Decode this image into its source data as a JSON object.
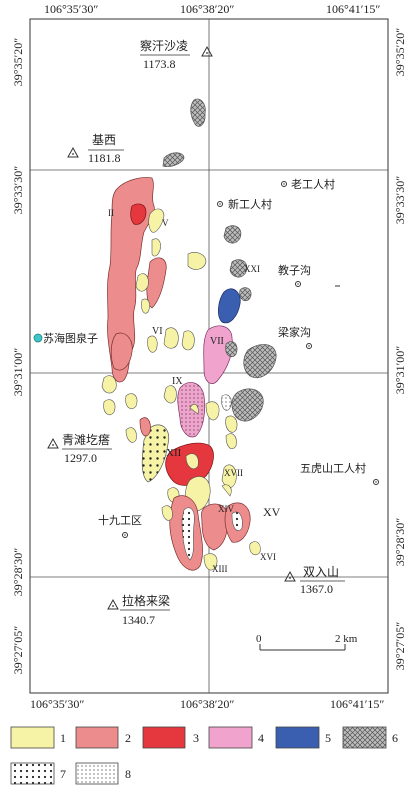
{
  "map": {
    "coords": {
      "top_left": "106°35′30″",
      "top_mid": "106°38′20″",
      "top_right": "106°41′15″",
      "bottom_left": "106°35′30″",
      "bottom_mid": "106°38′20″",
      "bottom_right": "106°41′15″",
      "left_top": "39°35′20″",
      "left_upper": "39°33′30″",
      "left_mid": "39°31′00″",
      "left_lower": "39°28′30″",
      "left_bottom": "39°27′05″",
      "right_top": "39°35′20″",
      "right_upper": "39°33′30″",
      "right_mid": "39°31′00″",
      "right_lower": "39°28′30″",
      "right_bottom": "39°27′05″"
    },
    "peaks": [
      {
        "name": "察汗沙凌",
        "elevation": "1173.8"
      },
      {
        "name": "基西",
        "elevation": "1181.8"
      },
      {
        "name": "青滩圪瘩",
        "elevation": "1297.0"
      },
      {
        "name": "双入山",
        "elevation": "1367.0"
      },
      {
        "name": "拉格来梁",
        "elevation": "1340.7"
      }
    ],
    "villages": [
      "老工人村",
      "新工人村",
      "教子沟",
      "梁家沟",
      "苏海图泉子",
      "五虎山工人村",
      "十九工区"
    ],
    "block_labels": [
      "XV",
      "XXI",
      "XIV",
      "XVII",
      "XVI",
      "XIII",
      "VI",
      "VII",
      "IX",
      "XII",
      "II",
      "V"
    ],
    "scale": {
      "start": "0",
      "end": "2 km"
    },
    "legend": [
      "1",
      "2",
      "3",
      "4",
      "5",
      "6",
      "7",
      "8"
    ],
    "colors": {
      "yellow": "#f7f3a6",
      "salmon": "#ec8c8c",
      "red": "#e5383e",
      "pink": "#f0a4cd",
      "blue": "#3a5fb0",
      "hatch": "#9a9a9a",
      "cyan": "#3ec6c6"
    }
  }
}
